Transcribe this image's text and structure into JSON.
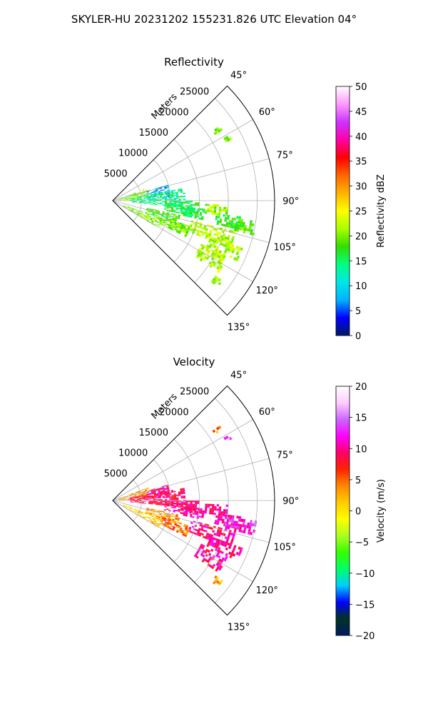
{
  "suptitle": "SKYLER-HU  20231202  155231.826 UTC Elevation 04°",
  "colors": {
    "reflectivity_stops": [
      "#001a66",
      "#0000ff",
      "#00b3ff",
      "#00e6e6",
      "#00ff80",
      "#33dd00",
      "#aaff00",
      "#ffff00",
      "#ffb300",
      "#ff6600",
      "#ff0000",
      "#ff00aa",
      "#cc33ff",
      "#ff99ff",
      "#ffffff"
    ],
    "velocity_stops": [
      "#001a66",
      "#003322",
      "#0000ff",
      "#00ccff",
      "#00ff66",
      "#33ff00",
      "#aaff22",
      "#ffff00",
      "#ffcc00",
      "#ff8800",
      "#ff2200",
      "#ff0066",
      "#ff00ff",
      "#cc66ff",
      "#ffccff",
      "#ffffff"
    ],
    "grid": "#b0b0b0"
  },
  "chart_data": [
    {
      "type": "heatmap",
      "subtype": "polar-sector",
      "title": "Reflectivity",
      "radial_label": "Meters",
      "theta_range_deg": [
        45,
        135
      ],
      "r_range": [
        0,
        28000
      ],
      "r_ticks": [
        "5000",
        "10000",
        "15000",
        "20000",
        "25000"
      ],
      "theta_ticks": [
        "45°",
        "60°",
        "75°",
        "90°",
        "105°",
        "120°",
        "135°"
      ],
      "grid": true,
      "colorbar": {
        "label": "Reflectivity dBZ",
        "range": [
          0,
          50
        ],
        "ticks": [
          "0",
          "5",
          "10",
          "15",
          "20",
          "25",
          "30",
          "35",
          "40",
          "45",
          "50"
        ]
      },
      "echo_regions": [
        {
          "theta": [
            60.5,
            62
          ],
          "r": [
            22000,
            23000
          ],
          "value": 20
        },
        {
          "theta": [
            55,
            57
          ],
          "r": [
            21000,
            22500
          ],
          "value": 20
        },
        {
          "theta": [
            70,
            88
          ],
          "r": [
            1000,
            6500
          ],
          "value": 20
        },
        {
          "theta": [
            74,
            87
          ],
          "r": [
            6000,
            10000
          ],
          "value": 8
        },
        {
          "theta": [
            80,
            95
          ],
          "r": [
            3000,
            12500
          ],
          "value": 14
        },
        {
          "theta": [
            90,
            100
          ],
          "r": [
            9000,
            15000
          ],
          "value": 16
        },
        {
          "theta": [
            95,
            102
          ],
          "r": [
            12000,
            16000
          ],
          "value": 15
        },
        {
          "theta": [
            92,
            98
          ],
          "r": [
            16000,
            20000
          ],
          "value": 21
        },
        {
          "theta": [
            97,
            103
          ],
          "r": [
            18000,
            22500
          ],
          "value": 17
        },
        {
          "theta": [
            98,
            104
          ],
          "r": [
            20000,
            25000
          ],
          "value": 19
        },
        {
          "theta": [
            104,
            112
          ],
          "r": [
            14000,
            22000
          ],
          "value": 22
        },
        {
          "theta": [
            110,
            116
          ],
          "r": [
            18000,
            24000
          ],
          "value": 22
        },
        {
          "theta": [
            102,
            110
          ],
          "r": [
            6000,
            12000
          ],
          "value": 18
        },
        {
          "theta": [
            108,
            116
          ],
          "r": [
            9000,
            14000
          ],
          "value": 20
        },
        {
          "theta": [
            110,
            120
          ],
          "r": [
            2000,
            9000
          ],
          "value": 20
        },
        {
          "theta": [
            116,
            124
          ],
          "r": [
            17000,
            22000
          ],
          "value": 22
        },
        {
          "theta": [
            126,
            129
          ],
          "r": [
            22000,
            23500
          ],
          "value": 22
        }
      ]
    },
    {
      "type": "heatmap",
      "subtype": "polar-sector",
      "title": "Velocity",
      "radial_label": "Meters",
      "theta_range_deg": [
        45,
        135
      ],
      "r_range": [
        0,
        28000
      ],
      "r_ticks": [
        "5000",
        "10000",
        "15000",
        "20000",
        "25000"
      ],
      "theta_ticks": [
        "45°",
        "60°",
        "75°",
        "90°",
        "105°",
        "120°",
        "135°"
      ],
      "grid": true,
      "colorbar": {
        "label": "Velocity (m/s)",
        "range": [
          -20,
          20
        ],
        "ticks": [
          "−20",
          "−15",
          "−10",
          "−5",
          "0",
          "5",
          "10",
          "15",
          "20"
        ]
      },
      "echo_regions": [
        {
          "theta": [
            60.5,
            62
          ],
          "r": [
            22000,
            23000
          ],
          "value": 11
        },
        {
          "theta": [
            55,
            57
          ],
          "r": [
            21000,
            22500
          ],
          "value": 4
        },
        {
          "theta": [
            70,
            88
          ],
          "r": [
            1000,
            6500
          ],
          "value": 3
        },
        {
          "theta": [
            74,
            87
          ],
          "r": [
            6000,
            10000
          ],
          "value": 10
        },
        {
          "theta": [
            80,
            95
          ],
          "r": [
            3000,
            12500
          ],
          "value": 9
        },
        {
          "theta": [
            90,
            100
          ],
          "r": [
            9000,
            15000
          ],
          "value": 10
        },
        {
          "theta": [
            95,
            102
          ],
          "r": [
            12000,
            16000
          ],
          "value": 10
        },
        {
          "theta": [
            92,
            98
          ],
          "r": [
            16000,
            20000
          ],
          "value": 10
        },
        {
          "theta": [
            97,
            103
          ],
          "r": [
            18000,
            22500
          ],
          "value": 10
        },
        {
          "theta": [
            98,
            104
          ],
          "r": [
            20000,
            25000
          ],
          "value": 12
        },
        {
          "theta": [
            104,
            112
          ],
          "r": [
            14000,
            22000
          ],
          "value": 10
        },
        {
          "theta": [
            110,
            116
          ],
          "r": [
            18000,
            24000
          ],
          "value": 10
        },
        {
          "theta": [
            102,
            110
          ],
          "r": [
            6000,
            12000
          ],
          "value": 3
        },
        {
          "theta": [
            108,
            116
          ],
          "r": [
            9000,
            14000
          ],
          "value": 5
        },
        {
          "theta": [
            110,
            120
          ],
          "r": [
            2000,
            9000
          ],
          "value": 1
        },
        {
          "theta": [
            116,
            124
          ],
          "r": [
            17000,
            22000
          ],
          "value": 10
        },
        {
          "theta": [
            126,
            129
          ],
          "r": [
            22000,
            23500
          ],
          "value": 2
        }
      ]
    }
  ]
}
